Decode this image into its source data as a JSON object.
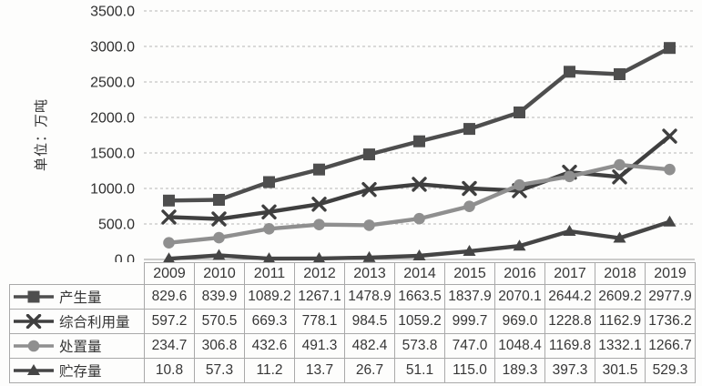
{
  "chart_data": {
    "type": "line",
    "title": "",
    "ylabel": "单位：万吨",
    "xlabel": "",
    "categories": [
      "2009",
      "2010",
      "2011",
      "2012",
      "2013",
      "2014",
      "2015",
      "2016",
      "2017",
      "2018",
      "2019"
    ],
    "series": [
      {
        "name": "产生量",
        "marker": "square",
        "color": "#4e4e4e",
        "values": [
          829.6,
          839.9,
          1089.2,
          1267.1,
          1478.9,
          1663.5,
          1837.9,
          2070.1,
          2644.2,
          2609.2,
          2977.9
        ]
      },
      {
        "name": "综合利用量",
        "marker": "x",
        "color": "#3f3f3f",
        "values": [
          597.2,
          570.5,
          669.3,
          778.1,
          984.5,
          1059.2,
          999.7,
          969.0,
          1228.8,
          1162.9,
          1736.2
        ]
      },
      {
        "name": "处置量",
        "marker": "circle",
        "color": "#8f8f8f",
        "values": [
          234.7,
          306.8,
          432.6,
          491.3,
          482.4,
          573.8,
          747.0,
          1048.4,
          1169.8,
          1332.1,
          1266.7
        ]
      },
      {
        "name": "贮存量",
        "marker": "triangle",
        "color": "#454545",
        "values": [
          10.8,
          57.3,
          11.2,
          13.7,
          26.7,
          51.1,
          115.0,
          189.3,
          397.3,
          301.5,
          529.3
        ]
      }
    ],
    "ylim": [
      0,
      3500
    ],
    "ytick_step": 500,
    "ytick_decimals": 1,
    "value_decimals": 1,
    "grid": true,
    "gridline_style": "dashed",
    "legend_position": "table-left"
  },
  "colors": {
    "grid": "#b6b6b6",
    "axis": "#9a9a9a",
    "table_border": "#a9a9a9",
    "text": "#363636",
    "background": "#fdfdfc"
  }
}
